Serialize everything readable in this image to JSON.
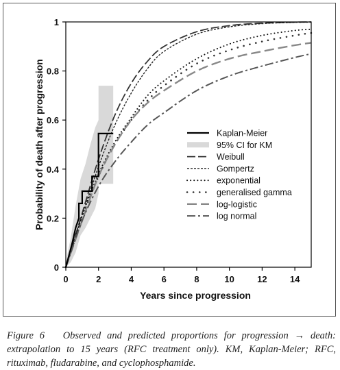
{
  "caption": {
    "label": "Figure 6",
    "text": "Observed and predicted proportions for progression → death: extrapolation to 15 years (RFC treatment only). KM, Kaplan-Meier; RFC, rituximab, fludarabine, and cyclophosphamide."
  },
  "chart_data": {
    "type": "line",
    "title": "",
    "xlabel": "Years since progression",
    "ylabel": "Probability of death after progression",
    "xlim": [
      0,
      15
    ],
    "ylim": [
      0,
      1
    ],
    "x_ticks": [
      0,
      2,
      4,
      6,
      8,
      10,
      12,
      14
    ],
    "y_ticks": [
      0,
      0.2,
      0.4,
      0.6,
      0.8,
      1
    ],
    "grid": false,
    "legend_position": "center-right",
    "colors": {
      "km": "#000000",
      "ci": "#d9d9d9",
      "weibull": "#333333",
      "gompertz": "#222222",
      "exponential": "#111111",
      "gen_gamma": "#333333",
      "log_logistic": "#888888",
      "log_normal": "#555555"
    },
    "km": {
      "name": "Kaplan-Meier",
      "x": [
        0,
        0.2,
        0.4,
        0.6,
        0.8,
        0.8,
        1.0,
        1.0,
        1.6,
        1.6,
        2.0,
        2.0,
        2.9
      ],
      "y": [
        0,
        0.05,
        0.1,
        0.16,
        0.2,
        0.26,
        0.26,
        0.31,
        0.31,
        0.37,
        0.37,
        0.545,
        0.545
      ]
    },
    "ci": {
      "name": "95% CI for KM",
      "x": [
        0,
        0.3,
        0.6,
        0.9,
        1.2,
        1.5,
        1.8,
        2.0,
        2.0,
        2.9
      ],
      "lower": [
        0,
        0.02,
        0.06,
        0.13,
        0.16,
        0.2,
        0.24,
        0.3,
        0.34,
        0.34
      ],
      "upper": [
        0.02,
        0.12,
        0.25,
        0.36,
        0.42,
        0.5,
        0.57,
        0.6,
        0.74,
        0.74
      ]
    },
    "series": [
      {
        "name": "Weibull",
        "x": [
          0,
          1,
          2,
          3,
          4,
          5,
          6,
          8,
          10,
          12,
          14,
          15
        ],
        "y": [
          0,
          0.22,
          0.44,
          0.62,
          0.75,
          0.84,
          0.9,
          0.96,
          0.985,
          0.995,
          0.999,
          1.0
        ]
      },
      {
        "name": "Gompertz",
        "x": [
          0,
          1,
          2,
          3,
          4,
          5,
          6,
          8,
          10,
          12,
          14,
          15
        ],
        "y": [
          0,
          0.21,
          0.41,
          0.58,
          0.71,
          0.81,
          0.88,
          0.95,
          0.98,
          0.993,
          0.998,
          0.999
        ]
      },
      {
        "name": "exponential",
        "x": [
          0,
          1,
          2,
          3,
          4,
          5,
          6,
          8,
          10,
          12,
          14,
          15
        ],
        "y": [
          0,
          0.21,
          0.38,
          0.51,
          0.61,
          0.7,
          0.76,
          0.85,
          0.91,
          0.945,
          0.965,
          0.97
        ]
      },
      {
        "name": "generalised gamma",
        "x": [
          0,
          1,
          2,
          3,
          4,
          5,
          6,
          8,
          10,
          12,
          14,
          15
        ],
        "y": [
          0,
          0.2,
          0.37,
          0.5,
          0.6,
          0.68,
          0.74,
          0.83,
          0.885,
          0.92,
          0.945,
          0.955
        ]
      },
      {
        "name": "log-logistic",
        "x": [
          0,
          1,
          2,
          3,
          4,
          5,
          6,
          8,
          10,
          12,
          14,
          15
        ],
        "y": [
          0,
          0.19,
          0.37,
          0.5,
          0.6,
          0.67,
          0.72,
          0.8,
          0.85,
          0.88,
          0.905,
          0.915
        ]
      },
      {
        "name": "log normal",
        "x": [
          0,
          1,
          2,
          3,
          4,
          5,
          6,
          8,
          10,
          12,
          14,
          15
        ],
        "y": [
          0,
          0.19,
          0.33,
          0.43,
          0.51,
          0.58,
          0.63,
          0.72,
          0.78,
          0.82,
          0.855,
          0.87
        ]
      }
    ]
  }
}
